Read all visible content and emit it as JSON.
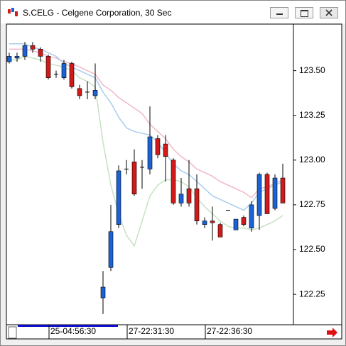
{
  "window": {
    "title": "S.CELG - Celgene Corporation, 30 Sec"
  },
  "chart_data": {
    "type": "candlestick",
    "x": [
      null,
      null,
      null,
      null,
      null,
      "25-04:56:30",
      null,
      null,
      null,
      null,
      null,
      null,
      null,
      null,
      null,
      "27-22:31:30",
      null,
      null,
      null,
      null,
      null,
      null,
      null,
      null,
      null,
      "27-22:36:30",
      null,
      null,
      null,
      null,
      null,
      null,
      null,
      null,
      null,
      null
    ],
    "open": [
      123.55,
      123.57,
      123.58,
      123.64,
      123.62,
      123.58,
      123.48,
      123.46,
      123.54,
      123.4,
      123.38,
      123.36,
      122.23,
      122.4,
      122.64,
      122.95,
      122.99,
      122.96,
      122.95,
      123.12,
      123.09,
      123.0,
      122.76,
      122.84,
      122.84,
      122.64,
      122.66,
      122.64,
      122.72,
      122.61,
      122.68,
      122.62,
      122.69,
      122.92,
      122.73,
      122.9
    ],
    "high": [
      123.6,
      123.6,
      123.66,
      123.66,
      123.63,
      123.59,
      123.5,
      123.56,
      123.55,
      123.42,
      123.44,
      123.54,
      122.38,
      122.75,
      122.97,
      123.0,
      123.06,
      123.0,
      123.3,
      123.14,
      123.14,
      123.01,
      122.9,
      123.0,
      122.92,
      122.68,
      122.74,
      122.65,
      122.72,
      122.67,
      122.69,
      122.77,
      122.93,
      122.93,
      122.92,
      122.98
    ],
    "low": [
      123.54,
      123.55,
      123.56,
      123.6,
      123.55,
      123.45,
      123.46,
      123.45,
      123.4,
      123.34,
      123.34,
      123.34,
      122.14,
      122.38,
      122.62,
      122.92,
      122.8,
      122.84,
      122.92,
      123.01,
      122.88,
      122.75,
      122.74,
      122.74,
      122.64,
      122.62,
      122.55,
      122.57,
      122.72,
      122.61,
      122.63,
      122.6,
      122.61,
      122.7,
      122.72,
      122.76
    ],
    "close": [
      123.58,
      123.58,
      123.64,
      123.62,
      123.58,
      123.46,
      123.48,
      123.54,
      123.41,
      123.36,
      123.38,
      123.39,
      122.29,
      122.6,
      122.94,
      122.95,
      122.81,
      122.96,
      123.13,
      123.03,
      123.02,
      122.76,
      122.81,
      122.76,
      122.66,
      122.66,
      122.65,
      122.57,
      122.72,
      122.67,
      122.64,
      122.75,
      122.92,
      122.7,
      122.9,
      122.76
    ],
    "up_color": "#1a62d6",
    "down_color": "#d21a1a",
    "overlays": [
      {
        "color": "#f4b6c8",
        "values": [
          123.62,
          123.62,
          123.62,
          123.61,
          123.6,
          123.58,
          123.57,
          123.55,
          123.54,
          123.52,
          123.5,
          123.48,
          123.42,
          123.39,
          123.35,
          123.32,
          123.29,
          123.26,
          123.2,
          123.16,
          123.12,
          123.06,
          123.02,
          122.99,
          122.95,
          122.93,
          122.91,
          122.88,
          122.86,
          122.84,
          122.82,
          122.79,
          122.84,
          122.85,
          122.87,
          122.89
        ]
      },
      {
        "color": "#aacdec",
        "values": [
          123.65,
          123.65,
          123.65,
          123.63,
          123.62,
          123.6,
          123.58,
          123.54,
          123.52,
          123.5,
          123.48,
          123.46,
          123.38,
          123.32,
          123.24,
          123.18,
          123.16,
          123.15,
          123.14,
          123.1,
          123.04,
          122.98,
          122.94,
          122.92,
          122.88,
          122.84,
          122.8,
          122.78,
          122.76,
          122.74,
          122.72,
          122.76,
          122.82,
          122.84,
          122.86,
          122.88
        ]
      },
      {
        "color": "#c6e2c2",
        "values": [
          123.56,
          123.56,
          123.58,
          123.57,
          123.56,
          123.54,
          123.53,
          123.52,
          123.5,
          123.46,
          123.44,
          123.41,
          123.1,
          122.86,
          122.7,
          122.58,
          122.52,
          122.66,
          122.8,
          122.86,
          122.89,
          122.89,
          122.88,
          122.85,
          122.79,
          122.74,
          122.7,
          122.66,
          122.63,
          122.62,
          122.62,
          122.61,
          122.62,
          122.64,
          122.66,
          122.69
        ]
      }
    ],
    "ylim": [
      122.08,
      123.76
    ],
    "yticks": [
      122.25,
      {
        "value": 122.5,
        "label": "122.50"
      },
      122.75,
      {
        "value": 123,
        "label": "123.00"
      },
      123.25,
      {
        "value": 123.5,
        "label": "123.50"
      }
    ],
    "grid": false
  }
}
